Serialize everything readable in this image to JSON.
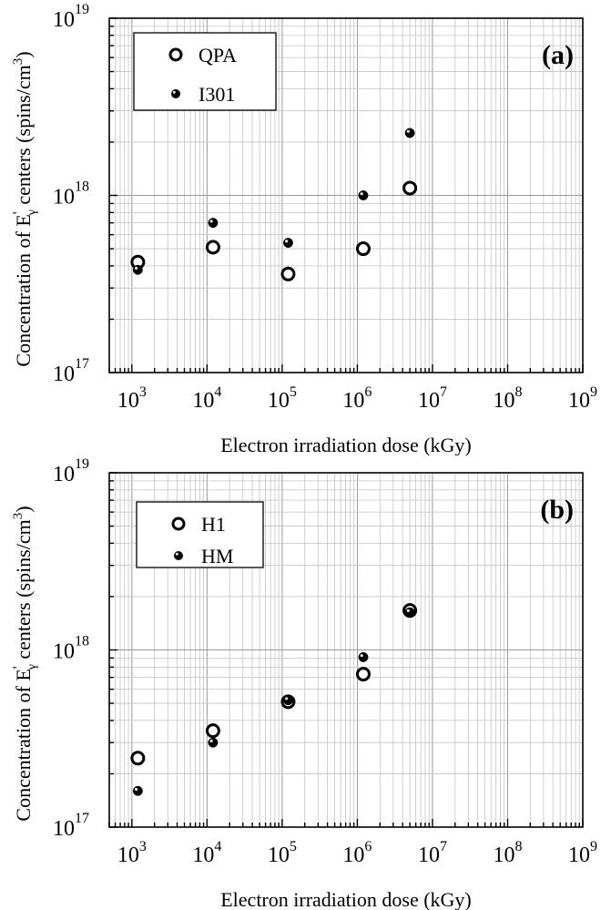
{
  "figure": {
    "panels": [
      {
        "panel_label": "(a)",
        "xlabel": "Electron irradiation dose (kGy)",
        "ylabel": {
          "main": "Concentration of E",
          "prime": "'",
          "sub": "γ",
          "rest": " centers (spins/cm",
          "sup": "3",
          "close": ")"
        },
        "x_ticks": [
          {
            "base": "10",
            "exp": "3"
          },
          {
            "base": "10",
            "exp": "4"
          },
          {
            "base": "10",
            "exp": "5"
          },
          {
            "base": "10",
            "exp": "6"
          },
          {
            "base": "10",
            "exp": "7"
          },
          {
            "base": "10",
            "exp": "8"
          },
          {
            "base": "10",
            "exp": "9"
          }
        ],
        "y_ticks": [
          {
            "base": "10",
            "exp": "17"
          },
          {
            "base": "10",
            "exp": "18"
          },
          {
            "base": "10",
            "exp": "19"
          }
        ],
        "legend": [
          {
            "label": "QPA",
            "marker": "open-circle"
          },
          {
            "label": "I301",
            "marker": "filled-circle"
          }
        ]
      },
      {
        "panel_label": "(b)",
        "xlabel": "Electron irradiation dose (kGy)",
        "ylabel": {
          "main": "Concentration of E",
          "prime": "'",
          "sub": "γ",
          "rest": " centers (spins/cm",
          "sup": "3",
          "close": ")"
        },
        "x_ticks": [
          {
            "base": "10",
            "exp": "3"
          },
          {
            "base": "10",
            "exp": "4"
          },
          {
            "base": "10",
            "exp": "5"
          },
          {
            "base": "10",
            "exp": "6"
          },
          {
            "base": "10",
            "exp": "7"
          },
          {
            "base": "10",
            "exp": "8"
          },
          {
            "base": "10",
            "exp": "9"
          }
        ],
        "y_ticks": [
          {
            "base": "10",
            "exp": "17"
          },
          {
            "base": "10",
            "exp": "18"
          },
          {
            "base": "10",
            "exp": "19"
          }
        ],
        "legend": [
          {
            "label": "H1",
            "marker": "open-circle"
          },
          {
            "label": "HM",
            "marker": "filled-circle"
          }
        ]
      }
    ]
  },
  "chart_data": [
    {
      "type": "scatter",
      "title": "(a)",
      "xlabel": "Electron irradiation dose (kGy)",
      "ylabel": "Concentration of E'γ centers (spins/cm3)",
      "xscale": "log",
      "yscale": "log",
      "xlim": [
        500,
        1000000000
      ],
      "ylim": [
        1e+17,
        1e+19
      ],
      "grid": true,
      "legend_position": "top-left",
      "series": [
        {
          "name": "QPA",
          "marker": "open-circle",
          "x": [
            1200,
            12000,
            120000,
            1200000,
            5000000
          ],
          "y": [
            4.2e+17,
            5.1e+17,
            3.6e+17,
            5e+17,
            1.1e+18
          ]
        },
        {
          "name": "I301",
          "marker": "filled-circle",
          "x": [
            1200,
            12000,
            120000,
            1200000,
            5000000
          ],
          "y": [
            3.8e+17,
            7e+17,
            5.4e+17,
            1e+18,
            2.25e+18
          ]
        }
      ]
    },
    {
      "type": "scatter",
      "title": "(b)",
      "xlabel": "Electron irradiation dose (kGy)",
      "ylabel": "Concentration of E'γ centers (spins/cm3)",
      "xscale": "log",
      "yscale": "log",
      "xlim": [
        500,
        1000000000
      ],
      "ylim": [
        1e+17,
        1e+19
      ],
      "grid": true,
      "legend_position": "top-left",
      "series": [
        {
          "name": "H1",
          "marker": "open-circle",
          "x": [
            1200,
            12000,
            120000,
            1200000,
            5000000
          ],
          "y": [
            2.45e+17,
            3.5e+17,
            5.1e+17,
            7.3e+17,
            1.67e+18
          ]
        },
        {
          "name": "HM",
          "marker": "filled-circle",
          "x": [
            1200,
            12000,
            120000,
            1200000,
            5000000
          ],
          "y": [
            1.6e+17,
            3e+17,
            5.2e+17,
            9.1e+17,
            1.63e+18
          ]
        }
      ]
    }
  ]
}
